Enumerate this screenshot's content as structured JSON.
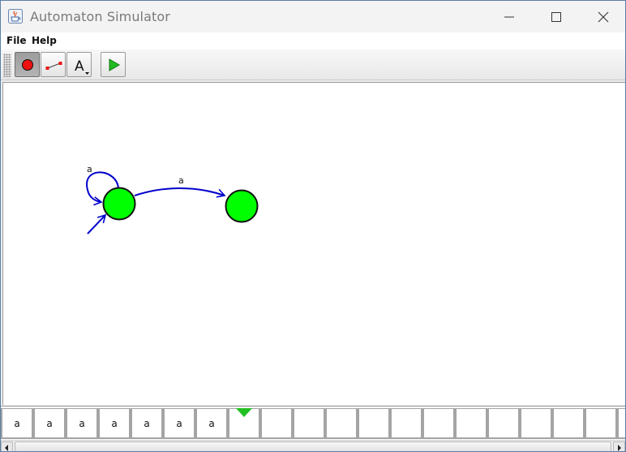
{
  "window": {
    "title": "Automaton Simulator",
    "app_icon": "java-cup-icon"
  },
  "menubar": {
    "items": [
      {
        "label": "File"
      },
      {
        "label": "Help"
      }
    ]
  },
  "toolbar": {
    "tools": [
      {
        "name": "state-tool",
        "icon": "red-dot-state-icon",
        "selected": true
      },
      {
        "name": "transition-tool",
        "icon": "transition-arrow-icon",
        "selected": false
      },
      {
        "name": "text-tool",
        "icon": "letter-a-dropdown-icon",
        "label": "A",
        "selected": false
      },
      {
        "name": "run-tool",
        "icon": "green-play-icon",
        "selected": false
      }
    ]
  },
  "canvas": {
    "state_color": "#00ff00",
    "transition_color": "#0000cc",
    "states": [
      {
        "id": "q0",
        "initial": true,
        "accepting": false
      },
      {
        "id": "q1",
        "initial": false,
        "accepting": false
      }
    ],
    "transitions": [
      {
        "from": "q0",
        "to": "q0",
        "label": "a"
      },
      {
        "from": "q0",
        "to": "q1",
        "label": "a"
      }
    ]
  },
  "tape": {
    "cells": [
      "a",
      "a",
      "a",
      "a",
      "a",
      "a",
      "a",
      "",
      "",
      "",
      "",
      "",
      "",
      "",
      "",
      "",
      "",
      "",
      "",
      ""
    ],
    "head_position": 7,
    "head_color": "#22c022"
  }
}
